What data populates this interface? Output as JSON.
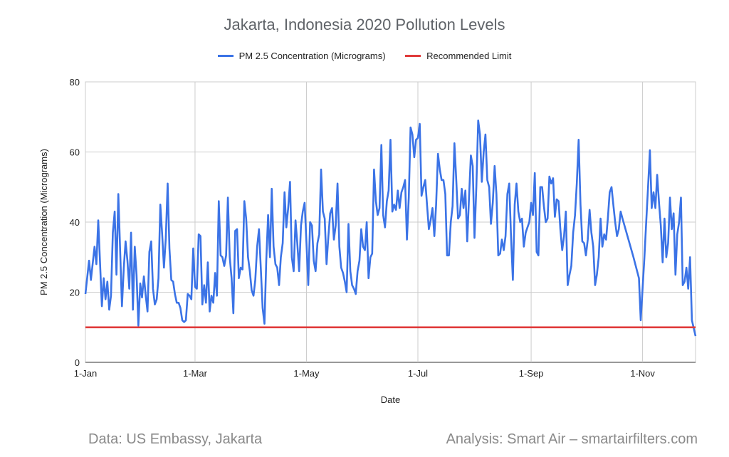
{
  "chart_data": {
    "type": "line",
    "title": "Jakarta, Indonesia 2020 Pollution Levels",
    "xlabel": "Date",
    "ylabel": "PM 2.5 Concentration (Micrograms)",
    "ylim": [
      0,
      80
    ],
    "yticks": [
      0,
      20,
      40,
      60,
      80
    ],
    "xticks": [
      {
        "label": "1-Jan",
        "day": 0
      },
      {
        "label": "1-Mar",
        "day": 60
      },
      {
        "label": "1-May",
        "day": 121
      },
      {
        "label": "1-Jul",
        "day": 182
      },
      {
        "label": "1-Sep",
        "day": 244
      },
      {
        "label": "1-Nov",
        "day": 305
      }
    ],
    "xlim_days": [
      0,
      334
    ],
    "grid": true,
    "legend_position": "top",
    "series": [
      {
        "name": "PM 2.5 Concentration (Micrograms)",
        "color": "#3b73e6",
        "points": [
          [
            0,
            19.5
          ],
          [
            2,
            29
          ],
          [
            3,
            23.5
          ],
          [
            5,
            33
          ],
          [
            6,
            28
          ],
          [
            7,
            40.5
          ],
          [
            9,
            16
          ],
          [
            10,
            24
          ],
          [
            11,
            18
          ],
          [
            12,
            23
          ],
          [
            13,
            15
          ],
          [
            14,
            19
          ],
          [
            15,
            37
          ],
          [
            16,
            43
          ],
          [
            17,
            25
          ],
          [
            18,
            48
          ],
          [
            20,
            16
          ],
          [
            21,
            27
          ],
          [
            22,
            34.5
          ],
          [
            23,
            29
          ],
          [
            24,
            21
          ],
          [
            25,
            37
          ],
          [
            26,
            15
          ],
          [
            27,
            33
          ],
          [
            28,
            25
          ],
          [
            29,
            10.5
          ],
          [
            30,
            22.5
          ],
          [
            31,
            18.5
          ],
          [
            32,
            24.5
          ],
          [
            33,
            19
          ],
          [
            34,
            14.5
          ],
          [
            35,
            31.5
          ],
          [
            36,
            34.5
          ],
          [
            37,
            21
          ],
          [
            38,
            16.5
          ],
          [
            39,
            18
          ],
          [
            40,
            24
          ],
          [
            41,
            45
          ],
          [
            42,
            36.5
          ],
          [
            43,
            27
          ],
          [
            44,
            35.5
          ],
          [
            45,
            51
          ],
          [
            46,
            32.5
          ],
          [
            47,
            23.5
          ],
          [
            48,
            23
          ],
          [
            49,
            19.5
          ],
          [
            50,
            17
          ],
          [
            51,
            17
          ],
          [
            52,
            15.5
          ],
          [
            53,
            12
          ],
          [
            54,
            11.5
          ],
          [
            55,
            12
          ],
          [
            56,
            19.5
          ],
          [
            57,
            19
          ],
          [
            58,
            18
          ],
          [
            59,
            32.5
          ],
          [
            60,
            21.5
          ],
          [
            61,
            21
          ],
          [
            62,
            36.5
          ],
          [
            63,
            36
          ],
          [
            64,
            16.5
          ],
          [
            65,
            22
          ],
          [
            66,
            17
          ],
          [
            67,
            28.5
          ],
          [
            68,
            14.5
          ],
          [
            69,
            19
          ],
          [
            70,
            17
          ],
          [
            71,
            25.5
          ],
          [
            72,
            19
          ],
          [
            73,
            46
          ],
          [
            74,
            30.5
          ],
          [
            75,
            30
          ],
          [
            76,
            27.5
          ],
          [
            77,
            30.5
          ],
          [
            78,
            47
          ],
          [
            79,
            30
          ],
          [
            80,
            24
          ],
          [
            81,
            14
          ],
          [
            82,
            37.5
          ],
          [
            83,
            38
          ],
          [
            84,
            24
          ],
          [
            85,
            27
          ],
          [
            86,
            26.5
          ],
          [
            87,
            46
          ],
          [
            88,
            41
          ],
          [
            89,
            30
          ],
          [
            90,
            26
          ],
          [
            91,
            20.5
          ],
          [
            92,
            19
          ],
          [
            93,
            23.5
          ],
          [
            94,
            33
          ],
          [
            95,
            38
          ],
          [
            96,
            27
          ],
          [
            97,
            15.5
          ],
          [
            98,
            11
          ],
          [
            99,
            29
          ],
          [
            100,
            42
          ],
          [
            101,
            30
          ],
          [
            102,
            49.5
          ],
          [
            103,
            33
          ],
          [
            104,
            28
          ],
          [
            105,
            27
          ],
          [
            106,
            22
          ],
          [
            107,
            30
          ],
          [
            108,
            34
          ],
          [
            109,
            48.5
          ],
          [
            110,
            38.5
          ],
          [
            111,
            44
          ],
          [
            112,
            51.5
          ],
          [
            113,
            30
          ],
          [
            114,
            26
          ],
          [
            115,
            40.5
          ],
          [
            116,
            34
          ],
          [
            117,
            26
          ],
          [
            118,
            39
          ],
          [
            119,
            43
          ],
          [
            120,
            45.5
          ],
          [
            121,
            34
          ],
          [
            122,
            22
          ],
          [
            123,
            40
          ],
          [
            124,
            39
          ],
          [
            125,
            29
          ],
          [
            126,
            26
          ],
          [
            127,
            34
          ],
          [
            128,
            36.5
          ],
          [
            129,
            55
          ],
          [
            130,
            43
          ],
          [
            131,
            41
          ],
          [
            132,
            28
          ],
          [
            133,
            36
          ],
          [
            134,
            42.5
          ],
          [
            135,
            44
          ],
          [
            136,
            35
          ],
          [
            137,
            39
          ],
          [
            138,
            51
          ],
          [
            139,
            33
          ],
          [
            140,
            27
          ],
          [
            141,
            25.5
          ],
          [
            142,
            23
          ],
          [
            143,
            20
          ],
          [
            144,
            39.5
          ],
          [
            145,
            26
          ],
          [
            146,
            22
          ],
          [
            147,
            21
          ],
          [
            148,
            19.5
          ],
          [
            149,
            26
          ],
          [
            150,
            29
          ],
          [
            151,
            38
          ],
          [
            152,
            33
          ],
          [
            153,
            32
          ],
          [
            154,
            40
          ],
          [
            155,
            24
          ],
          [
            156,
            30
          ],
          [
            157,
            31
          ],
          [
            158,
            55
          ],
          [
            159,
            46
          ],
          [
            160,
            42
          ],
          [
            161,
            44
          ],
          [
            162,
            62
          ],
          [
            163,
            42
          ],
          [
            164,
            38.5
          ],
          [
            165,
            46
          ],
          [
            166,
            49
          ],
          [
            167,
            63.5
          ],
          [
            168,
            43
          ],
          [
            169,
            45
          ],
          [
            170,
            43.5
          ],
          [
            171,
            49
          ],
          [
            172,
            44
          ],
          [
            173,
            48.5
          ],
          [
            174,
            50
          ],
          [
            175,
            52
          ],
          [
            176,
            35
          ],
          [
            177,
            47
          ],
          [
            178,
            67
          ],
          [
            179,
            65
          ],
          [
            180,
            58.5
          ],
          [
            181,
            63.5
          ],
          [
            182,
            64
          ],
          [
            183,
            68
          ],
          [
            184,
            47.5
          ],
          [
            185,
            50
          ],
          [
            186,
            52
          ],
          [
            187,
            45
          ],
          [
            188,
            38
          ],
          [
            189,
            40.5
          ],
          [
            190,
            44
          ],
          [
            191,
            36
          ],
          [
            192,
            45
          ],
          [
            193,
            59.5
          ],
          [
            194,
            55
          ],
          [
            195,
            52
          ],
          [
            196,
            52
          ],
          [
            197,
            48
          ],
          [
            198,
            30.5
          ],
          [
            199,
            30.5
          ],
          [
            200,
            40
          ],
          [
            201,
            44.5
          ],
          [
            202,
            62.5
          ],
          [
            203,
            52
          ],
          [
            204,
            41
          ],
          [
            205,
            42
          ],
          [
            206,
            49.5
          ],
          [
            207,
            44
          ],
          [
            208,
            49
          ],
          [
            209,
            34.5
          ],
          [
            210,
            47
          ],
          [
            211,
            59
          ],
          [
            212,
            56
          ],
          [
            213,
            35.5
          ],
          [
            214,
            50
          ],
          [
            215,
            69
          ],
          [
            216,
            65
          ],
          [
            217,
            51.5
          ],
          [
            218,
            60
          ],
          [
            219,
            65
          ],
          [
            220,
            52
          ],
          [
            221,
            50
          ],
          [
            222,
            39.5
          ],
          [
            223,
            45.5
          ],
          [
            224,
            56
          ],
          [
            225,
            48
          ],
          [
            226,
            30.5
          ],
          [
            227,
            31
          ],
          [
            228,
            35
          ],
          [
            229,
            32
          ],
          [
            230,
            36
          ],
          [
            231,
            48
          ],
          [
            232,
            51
          ],
          [
            233,
            36
          ],
          [
            234,
            23.5
          ],
          [
            235,
            45
          ],
          [
            236,
            51
          ],
          [
            237,
            43
          ],
          [
            238,
            40
          ],
          [
            239,
            41
          ],
          [
            240,
            33
          ],
          [
            241,
            37
          ],
          [
            242,
            38.5
          ],
          [
            243,
            40
          ],
          [
            244,
            45.5
          ],
          [
            245,
            42
          ],
          [
            246,
            54
          ],
          [
            247,
            31.5
          ],
          [
            248,
            30.5
          ],
          [
            249,
            50
          ],
          [
            250,
            50
          ],
          [
            251,
            44.5
          ],
          [
            252,
            40
          ],
          [
            253,
            41
          ],
          [
            254,
            53
          ],
          [
            255,
            51
          ],
          [
            256,
            52.5
          ],
          [
            257,
            41.5
          ],
          [
            258,
            46.5
          ],
          [
            259,
            46
          ],
          [
            260,
            38
          ],
          [
            261,
            32
          ],
          [
            262,
            36
          ],
          [
            263,
            43
          ],
          [
            264,
            22
          ],
          [
            265,
            25
          ],
          [
            266,
            27.5
          ],
          [
            267,
            37
          ],
          [
            268,
            42
          ],
          [
            269,
            51
          ],
          [
            270,
            63.5
          ],
          [
            271,
            45
          ],
          [
            272,
            34.5
          ],
          [
            273,
            34
          ],
          [
            274,
            30.5
          ],
          [
            275,
            35
          ],
          [
            276,
            43.5
          ],
          [
            277,
            37
          ],
          [
            278,
            33
          ],
          [
            279,
            22
          ],
          [
            280,
            25
          ],
          [
            281,
            30
          ],
          [
            282,
            41
          ],
          [
            283,
            33
          ],
          [
            284,
            36.5
          ],
          [
            285,
            35
          ],
          [
            286,
            41
          ],
          [
            287,
            48.5
          ],
          [
            288,
            50
          ],
          [
            289,
            45
          ],
          [
            290,
            40
          ],
          [
            291,
            36
          ],
          [
            292,
            38
          ],
          [
            293,
            43
          ],
          [
            294,
            41
          ],
          [
            300,
            30
          ],
          [
            303,
            24
          ],
          [
            304,
            12
          ],
          [
            306,
            30
          ],
          [
            307,
            40
          ],
          [
            308,
            50
          ],
          [
            309,
            60.5
          ],
          [
            310,
            44
          ],
          [
            311,
            48.5
          ],
          [
            312,
            44
          ],
          [
            313,
            53.5
          ],
          [
            314,
            45.5
          ],
          [
            315,
            39
          ],
          [
            316,
            28.5
          ],
          [
            317,
            41
          ],
          [
            318,
            30
          ],
          [
            319,
            34
          ],
          [
            320,
            47
          ],
          [
            321,
            38
          ],
          [
            322,
            42.5
          ],
          [
            323,
            25
          ],
          [
            324,
            36.5
          ],
          [
            325,
            40
          ],
          [
            326,
            47
          ],
          [
            327,
            22
          ],
          [
            328,
            23
          ],
          [
            329,
            27
          ],
          [
            330,
            21
          ],
          [
            331,
            30
          ],
          [
            332,
            12
          ],
          [
            334,
            7.5
          ]
        ]
      },
      {
        "name": "Recommended Limit",
        "color": "#e03a3a",
        "points": [
          [
            0,
            10
          ],
          [
            334,
            10
          ]
        ]
      }
    ]
  },
  "footer": {
    "left": "Data: US Embassy, Jakarta",
    "right": "Analysis: Smart Air – smartairfilters.com"
  }
}
